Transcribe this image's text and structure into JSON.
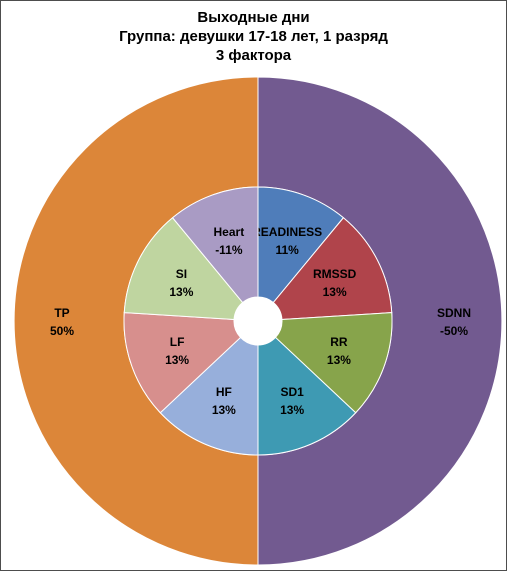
{
  "chart_data": {
    "type": "donut",
    "title": [
      "Выходные дни",
      "Группа: девушки 17-18 лет, 1 разряд",
      "3 фактора"
    ],
    "outer_ring": [
      {
        "name": "SDNN",
        "value_label": "-50%",
        "share": 50,
        "color": "#725a90"
      },
      {
        "name": "TP",
        "value_label": "50%",
        "share": 50,
        "color": "#dc8639"
      }
    ],
    "inner_ring": [
      {
        "name": "READINESS",
        "value_label": "11%",
        "share": 11,
        "color": "#4f7dba"
      },
      {
        "name": "RMSSD",
        "value_label": "13%",
        "share": 13,
        "color": "#b0444b"
      },
      {
        "name": "RR",
        "value_label": "13%",
        "share": 13,
        "color": "#87a44b"
      },
      {
        "name": "SD1",
        "value_label": "13%",
        "share": 13,
        "color": "#3e9ab3"
      },
      {
        "name": "HF",
        "value_label": "13%",
        "share": 13,
        "color": "#97afdb"
      },
      {
        "name": "LF",
        "value_label": "13%",
        "share": 13,
        "color": "#d78f8d"
      },
      {
        "name": "SI",
        "value_label": "13%",
        "share": 13,
        "color": "#bfd5a0"
      },
      {
        "name": "Heart",
        "value_label": "-11%",
        "share": 11,
        "color": "#a99bc4"
      }
    ]
  }
}
